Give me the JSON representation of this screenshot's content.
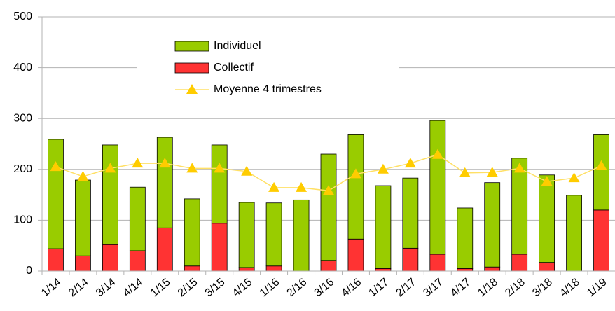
{
  "chart_data": {
    "type": "bar",
    "categories": [
      "1/14",
      "2/14",
      "3/14",
      "4/14",
      "1/15",
      "2/15",
      "3/15",
      "4/15",
      "1/16",
      "2/16",
      "3/16",
      "4/16",
      "1/17",
      "2/17",
      "3/17",
      "4/17",
      "1/18",
      "2/18",
      "3/18",
      "4/18",
      "1/19"
    ],
    "series": [
      {
        "name": "Individuel",
        "type": "bar",
        "color": "#99cc00",
        "values": [
          215,
          149,
          196,
          125,
          178,
          132,
          154,
          128,
          124,
          140,
          209,
          205,
          163,
          138,
          263,
          119,
          166,
          189,
          172,
          149,
          148
        ]
      },
      {
        "name": "Collectif",
        "type": "bar",
        "color": "#ff3333",
        "values": [
          44,
          30,
          52,
          40,
          85,
          10,
          94,
          7,
          10,
          0,
          21,
          63,
          5,
          45,
          33,
          5,
          8,
          33,
          17,
          0,
          120
        ]
      },
      {
        "name": "Moyenne 4 trimestres",
        "type": "line",
        "color": "#ffcc00",
        "values": [
          205,
          186,
          202,
          212,
          212,
          202,
          202,
          196,
          164,
          164,
          158,
          191,
          200,
          212,
          229,
          193,
          194,
          202,
          176,
          183,
          207
        ]
      }
    ],
    "ylim": [
      0,
      500
    ],
    "yticks": [
      0,
      100,
      200,
      300,
      400,
      500
    ],
    "grid": true,
    "legend": "top-left"
  }
}
